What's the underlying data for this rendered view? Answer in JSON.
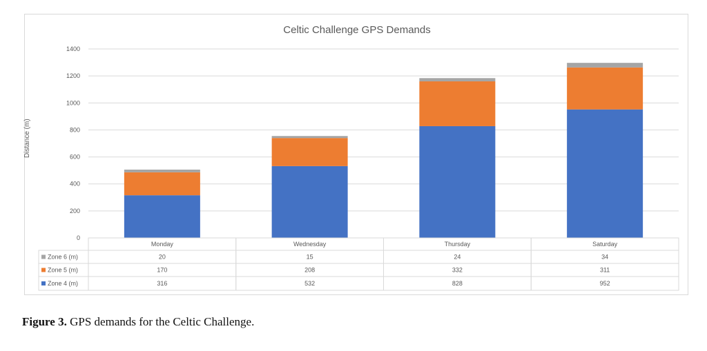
{
  "chart_data": {
    "type": "bar",
    "stacked": true,
    "title": "Celtic Challenge GPS Demands",
    "xlabel": "",
    "ylabel": "Distance (m)",
    "ylim": [
      0,
      1400
    ],
    "yticks": [
      0,
      200,
      400,
      600,
      800,
      1000,
      1200,
      1400
    ],
    "grid": true,
    "legend": "data-table",
    "categories": [
      "Monday",
      "Wednesday",
      "Thursday",
      "Saturday"
    ],
    "series": [
      {
        "name": "Zone 4 (m)",
        "values": [
          316,
          532,
          828,
          952
        ],
        "color": "#4472c4"
      },
      {
        "name": "Zone 5 (m)",
        "values": [
          170,
          208,
          332,
          311
        ],
        "color": "#ed7d31"
      },
      {
        "name": "Zone 6 (m)",
        "values": [
          20,
          15,
          24,
          34
        ],
        "color": "#a5a5a5"
      }
    ]
  },
  "caption": {
    "label": "Figure 3.",
    "text": " GPS demands for the Celtic Challenge."
  }
}
